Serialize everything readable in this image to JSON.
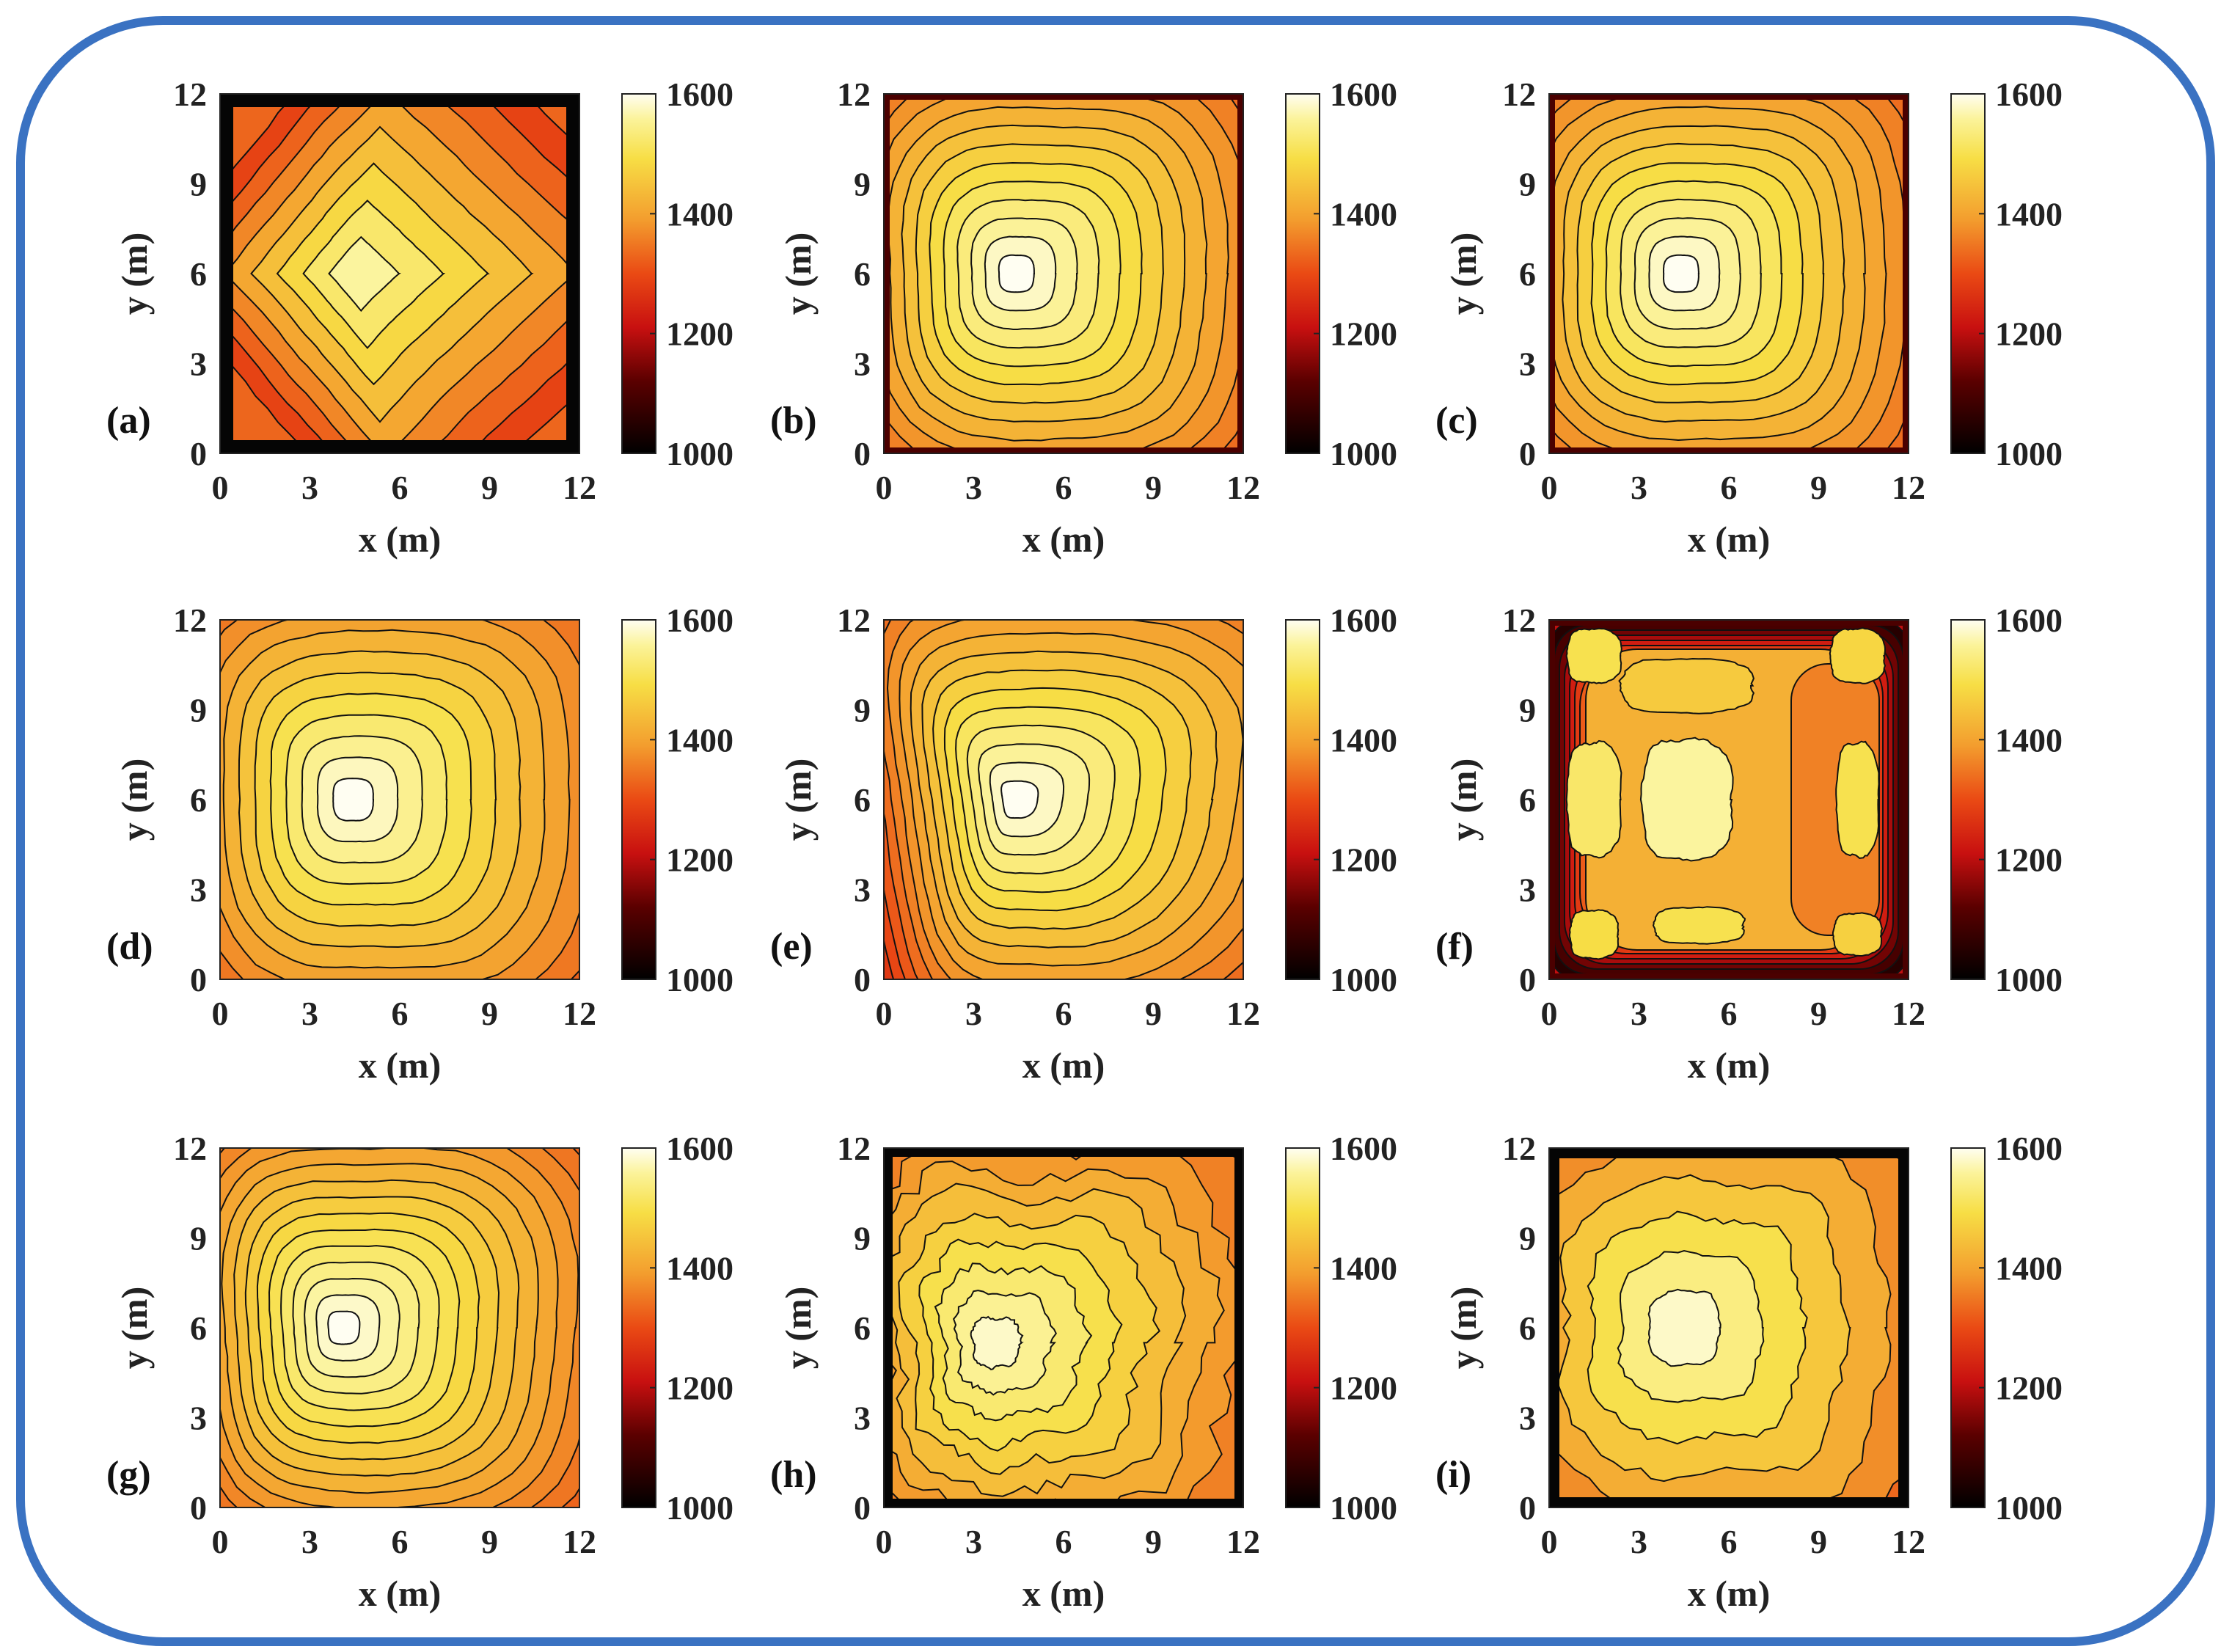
{
  "chart_data": [
    {
      "type": "heatmap",
      "panel_label": "(a)",
      "xlabel": "x (m)",
      "ylabel": "y (m)",
      "xlim": [
        0,
        12
      ],
      "ylim": [
        0,
        12
      ],
      "xticks": [
        "0",
        "3",
        "6",
        "9",
        "12"
      ],
      "yticks": [
        "0",
        "3",
        "6",
        "9",
        "12"
      ],
      "colorbar": {
        "min": 1000,
        "max": 1600,
        "ticks": [
          "1000",
          "1200",
          "1400",
          "1600"
        ]
      },
      "peak": {
        "x": 4.5,
        "y": 6,
        "value": 1560
      },
      "pattern": "diamond contours, black border band"
    },
    {
      "type": "heatmap",
      "panel_label": "(b)",
      "xlabel": "x (m)",
      "ylabel": "y (m)",
      "xlim": [
        0,
        12
      ],
      "ylim": [
        0,
        12
      ],
      "xticks": [
        "0",
        "3",
        "6",
        "9",
        "12"
      ],
      "yticks": [
        "0",
        "3",
        "6",
        "9",
        "12"
      ],
      "colorbar": {
        "min": 1000,
        "max": 1600,
        "ticks": [
          "1000",
          "1200",
          "1400",
          "1600"
        ]
      },
      "peak": {
        "x": 4.3,
        "y": 6,
        "value": 1600
      },
      "pattern": "rounded square contours"
    },
    {
      "type": "heatmap",
      "panel_label": "(c)",
      "xlabel": "x (m)",
      "ylabel": "y (m)",
      "xlim": [
        0,
        12
      ],
      "ylim": [
        0,
        12
      ],
      "xticks": [
        "0",
        "3",
        "6",
        "9",
        "12"
      ],
      "yticks": [
        "0",
        "3",
        "6",
        "9",
        "12"
      ],
      "colorbar": {
        "min": 1000,
        "max": 1600,
        "ticks": [
          "1000",
          "1200",
          "1400",
          "1600"
        ]
      },
      "peak": {
        "x": 4.3,
        "y": 6,
        "value": 1600
      },
      "pattern": "rounded square contours, dark edges"
    },
    {
      "type": "heatmap",
      "panel_label": "(d)",
      "xlabel": "x (m)",
      "ylabel": "y (m)",
      "xlim": [
        0,
        12
      ],
      "ylim": [
        0,
        12
      ],
      "xticks": [
        "0",
        "3",
        "6",
        "9",
        "12"
      ],
      "yticks": [
        "0",
        "3",
        "6",
        "9",
        "12"
      ],
      "colorbar": {
        "min": 1000,
        "max": 1600,
        "ticks": [
          "1000",
          "1200",
          "1400",
          "1600"
        ]
      },
      "peak": {
        "x": 4.3,
        "y": 6,
        "value": 1600
      },
      "pattern": "rounded square contours"
    },
    {
      "type": "heatmap",
      "panel_label": "(e)",
      "xlabel": "x (m)",
      "ylabel": "y (m)",
      "xlim": [
        0,
        12
      ],
      "ylim": [
        0,
        12
      ],
      "xticks": [
        "0",
        "3",
        "6",
        "9",
        "12"
      ],
      "yticks": [
        "0",
        "3",
        "6",
        "9",
        "12"
      ],
      "colorbar": {
        "min": 1000,
        "max": 1600,
        "ticks": [
          "1000",
          "1200",
          "1400",
          "1600"
        ]
      },
      "peak": {
        "x": 4.3,
        "y": 6,
        "value": 1600
      },
      "pattern": "skewed contours"
    },
    {
      "type": "heatmap",
      "panel_label": "(f)",
      "xlabel": "x (m)",
      "ylabel": "y (m)",
      "xlim": [
        0,
        12
      ],
      "ylim": [
        0,
        12
      ],
      "xticks": [
        "0",
        "3",
        "6",
        "9",
        "12"
      ],
      "yticks": [
        "0",
        "3",
        "6",
        "9",
        "12"
      ],
      "colorbar": {
        "min": 1000,
        "max": 1600,
        "ticks": [
          "1000",
          "1200",
          "1400",
          "1600"
        ]
      },
      "peak": {
        "x": 4.6,
        "y": 6,
        "value": 1580
      },
      "pattern": "multiple hot spots"
    },
    {
      "type": "heatmap",
      "panel_label": "(g)",
      "xlabel": "x (m)",
      "ylabel": "y (m)",
      "xlim": [
        0,
        12
      ],
      "ylim": [
        0,
        12
      ],
      "xticks": [
        "0",
        "3",
        "6",
        "9",
        "12"
      ],
      "yticks": [
        "0",
        "3",
        "6",
        "9",
        "12"
      ],
      "colorbar": {
        "min": 1000,
        "max": 1600,
        "ticks": [
          "1000",
          "1200",
          "1400",
          "1600"
        ]
      },
      "peak": {
        "x": 4,
        "y": 6,
        "value": 1600
      },
      "pattern": "many rounded contours"
    },
    {
      "type": "heatmap",
      "panel_label": "(h)",
      "xlabel": "x (m)",
      "ylabel": "y (m)",
      "xlim": [
        0,
        12
      ],
      "ylim": [
        0,
        12
      ],
      "xticks": [
        "0",
        "3",
        "6",
        "9",
        "12"
      ],
      "yticks": [
        "0",
        "3",
        "6",
        "9",
        "12"
      ],
      "colorbar": {
        "min": 1000,
        "max": 1600,
        "ticks": [
          "1000",
          "1200",
          "1400",
          "1600"
        ]
      },
      "peak": {
        "x": 3.5,
        "y": 5.5,
        "value": 1580
      },
      "pattern": "noisy wavy contours"
    },
    {
      "type": "heatmap",
      "panel_label": "(i)",
      "xlabel": "x (m)",
      "ylabel": "y (m)",
      "xlim": [
        0,
        12
      ],
      "ylim": [
        0,
        12
      ],
      "xticks": [
        "0",
        "3",
        "6",
        "9",
        "12"
      ],
      "yticks": [
        "0",
        "3",
        "6",
        "9",
        "12"
      ],
      "colorbar": {
        "min": 1000,
        "max": 1600,
        "ticks": [
          "1000",
          "1200",
          "1400",
          "1600"
        ]
      },
      "peak": {
        "x": 4.3,
        "y": 6,
        "value": 1580
      },
      "pattern": "noisy contours, black border"
    }
  ]
}
